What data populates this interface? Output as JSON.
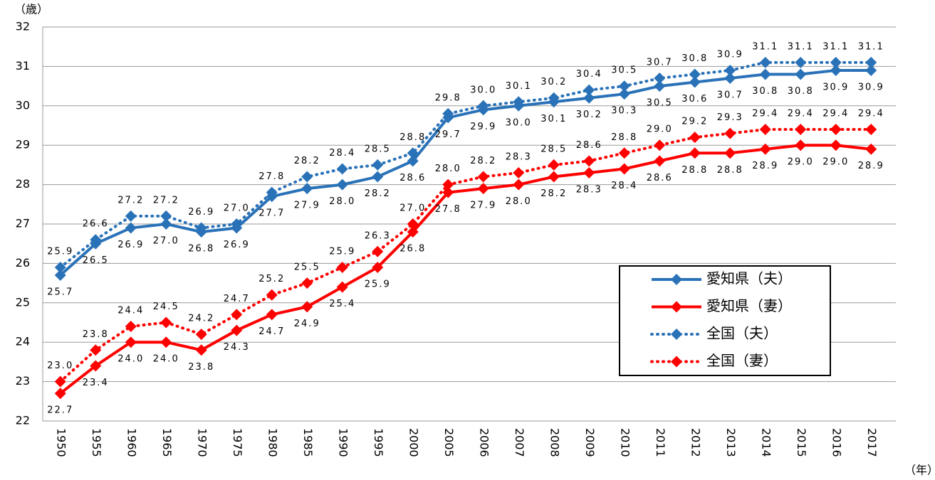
{
  "chart_data": {
    "type": "line",
    "y_label": "（歳）",
    "x_label": "（年）",
    "categories": [
      "1950",
      "1955",
      "1960",
      "1965",
      "1970",
      "1975",
      "1980",
      "1985",
      "1990",
      "1995",
      "2000",
      "2005",
      "2006",
      "2007",
      "2008",
      "2009",
      "2010",
      "2011",
      "2012",
      "2013",
      "2014",
      "2015",
      "2016",
      "2017"
    ],
    "ylim": [
      22,
      32
    ],
    "yticks": [
      22,
      23,
      24,
      25,
      26,
      27,
      28,
      29,
      30,
      31,
      32
    ],
    "grid": true,
    "legend_position": "right",
    "series": [
      {
        "name": "愛知県（夫）",
        "color": "#2a72b8",
        "line_style": "solid",
        "label_position": "below",
        "values": [
          25.7,
          26.5,
          26.9,
          27.0,
          26.8,
          26.9,
          27.7,
          27.9,
          28.0,
          28.2,
          28.6,
          29.7,
          29.9,
          30.0,
          30.1,
          30.2,
          30.3,
          30.5,
          30.6,
          30.7,
          30.8,
          30.8,
          30.9,
          30.9
        ],
        "value_labels": [
          "25.7",
          "26.5",
          "26.9",
          "27.0",
          "26.8",
          "26.9",
          "27.7",
          "27.9",
          "28.0",
          "28.2",
          "28.6",
          "29.7",
          "29.9",
          "30.0",
          "30.1",
          "30.2",
          "30.3",
          "30.5",
          "30.6",
          "30.7",
          "30.8",
          "30.8",
          "30.9",
          "30.9"
        ]
      },
      {
        "name": "愛知県（妻）",
        "color": "#ff0000",
        "line_style": "solid",
        "label_position": "below",
        "values": [
          22.7,
          23.4,
          24.0,
          24.0,
          23.8,
          24.3,
          24.7,
          24.9,
          25.4,
          25.9,
          26.8,
          27.8,
          27.9,
          28.0,
          28.2,
          28.3,
          28.4,
          28.6,
          28.8,
          28.8,
          28.9,
          29.0,
          29.0,
          28.9
        ],
        "value_labels": [
          "22.7",
          "23.4",
          "24.0",
          "24.0",
          "23.8",
          "24.3",
          "24.7",
          "24.9",
          "25.4",
          "25.9",
          "26.8",
          "27.8",
          "27.9",
          "28.0",
          "28.2",
          "28.3",
          "28.4",
          "28.6",
          "28.8",
          "28.8",
          "28.9",
          "29.0",
          "29.0",
          "28.9"
        ]
      },
      {
        "name": "全国（夫）",
        "color": "#2a72b8",
        "line_style": "dotted",
        "label_position": "above",
        "values": [
          25.9,
          26.6,
          27.2,
          27.2,
          26.9,
          27.0,
          27.8,
          28.2,
          28.4,
          28.5,
          28.8,
          29.8,
          30.0,
          30.1,
          30.2,
          30.4,
          30.5,
          30.7,
          30.8,
          30.9,
          31.1,
          31.1,
          31.1,
          31.1
        ],
        "value_labels": [
          "25.9",
          "26.6",
          "27.2",
          "27.2",
          "26.9",
          "27.0",
          "27.8",
          "28.2",
          "28.4",
          "28.5",
          "28.8",
          "29.8",
          "30.0",
          "30.1",
          "30.2",
          "30.4",
          "30.5",
          "30.7",
          "30.8",
          "30.9",
          "31.1",
          "31.1",
          "31.1",
          "31.1"
        ]
      },
      {
        "name": "全国（妻）",
        "color": "#ff0000",
        "line_style": "dotted",
        "label_position": "above",
        "values": [
          23.0,
          23.8,
          24.4,
          24.5,
          24.2,
          24.7,
          25.2,
          25.5,
          25.9,
          26.3,
          27.0,
          28.0,
          28.2,
          28.3,
          28.5,
          28.6,
          28.8,
          29.0,
          29.2,
          29.3,
          29.4,
          29.4,
          29.4,
          29.4
        ],
        "value_labels": [
          "23.0",
          "23.8",
          "24.4",
          "24.5",
          "24.2",
          "24.7",
          "25.2",
          "25.5",
          "25.9",
          "26.3",
          "27.0",
          "28.0",
          "28.2",
          "28.3",
          "28.5",
          "28.6",
          "28.8",
          "29.0",
          "29.2",
          "29.3",
          "29.4",
          "29.4",
          "29.4",
          "29.4"
        ]
      }
    ]
  }
}
